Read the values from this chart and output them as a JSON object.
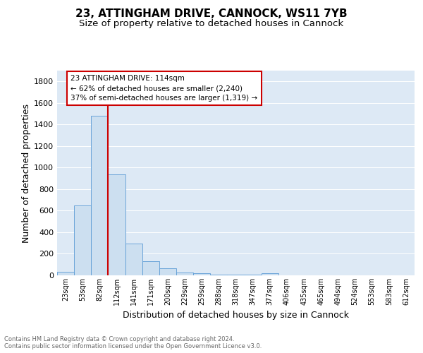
{
  "title1": "23, ATTINGHAM DRIVE, CANNOCK, WS11 7YB",
  "title2": "Size of property relative to detached houses in Cannock",
  "xlabel": "Distribution of detached houses by size in Cannock",
  "ylabel": "Number of detached properties",
  "bin_labels": [
    "23sqm",
    "53sqm",
    "82sqm",
    "112sqm",
    "141sqm",
    "171sqm",
    "200sqm",
    "229sqm",
    "259sqm",
    "288sqm",
    "318sqm",
    "347sqm",
    "377sqm",
    "406sqm",
    "435sqm",
    "465sqm",
    "494sqm",
    "524sqm",
    "553sqm",
    "583sqm",
    "612sqm"
  ],
  "bar_values": [
    35,
    650,
    1480,
    935,
    295,
    130,
    68,
    25,
    20,
    5,
    5,
    5,
    20,
    0,
    0,
    0,
    0,
    0,
    0,
    0,
    0
  ],
  "bar_color": "#ccdff0",
  "bar_edge_color": "#5b9bd5",
  "vline_color": "#cc0000",
  "annotation_text": "23 ATTINGHAM DRIVE: 114sqm\n← 62% of detached houses are smaller (2,240)\n37% of semi-detached houses are larger (1,319) →",
  "annotation_box_color": "#ffffff",
  "annotation_box_edge": "#cc0000",
  "footnote": "Contains HM Land Registry data © Crown copyright and database right 2024.\nContains public sector information licensed under the Open Government Licence v3.0.",
  "ylim": [
    0,
    1900
  ],
  "yticks": [
    0,
    200,
    400,
    600,
    800,
    1000,
    1200,
    1400,
    1600,
    1800
  ],
  "bg_color": "#dde9f5",
  "fig_bg": "#ffffff",
  "title1_fontsize": 11,
  "title2_fontsize": 9.5,
  "xlabel_fontsize": 9,
  "ylabel_fontsize": 9,
  "grid_color": "#ffffff",
  "vline_xindex": 2.5
}
